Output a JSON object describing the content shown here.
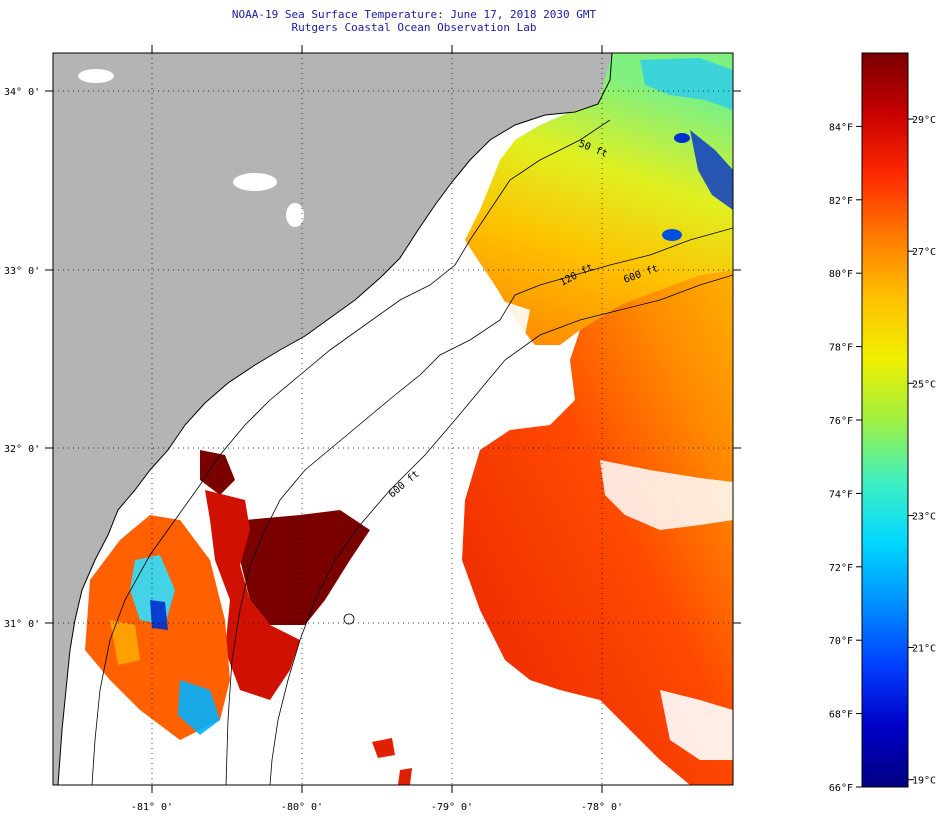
{
  "header": {
    "title": "NOAA-19 Sea Surface Temperature:  June 17, 2018 2030 GMT",
    "subtitle": "Rutgers Coastal Ocean Observation Lab"
  },
  "map": {
    "lat_labels": [
      "34° 0'",
      "33° 0'",
      "32° 0'",
      "31° 0'"
    ],
    "lon_labels": [
      "-81° 0'",
      "-80° 0'",
      "-79° 0'",
      "-78° 0'"
    ],
    "isobath_labels": [
      "50 ft",
      "120 ft",
      "600 ft",
      "600 ft"
    ]
  },
  "colorbar": {
    "f_labels": [
      "84°F",
      "82°F",
      "80°F",
      "78°F",
      "76°F",
      "74°F",
      "72°F",
      "70°F",
      "68°F",
      "66°F"
    ],
    "c_labels": [
      "29°C",
      "27°C",
      "25°C",
      "23°C",
      "21°C",
      "19°C"
    ],
    "colors": [
      "#7a0000",
      "#c80000",
      "#ff2a00",
      "#ff7a00",
      "#ffc000",
      "#f0f000",
      "#a0f040",
      "#40f0c0",
      "#00d8ff",
      "#0090ff",
      "#0040ff",
      "#0000c8",
      "#000080"
    ]
  }
}
